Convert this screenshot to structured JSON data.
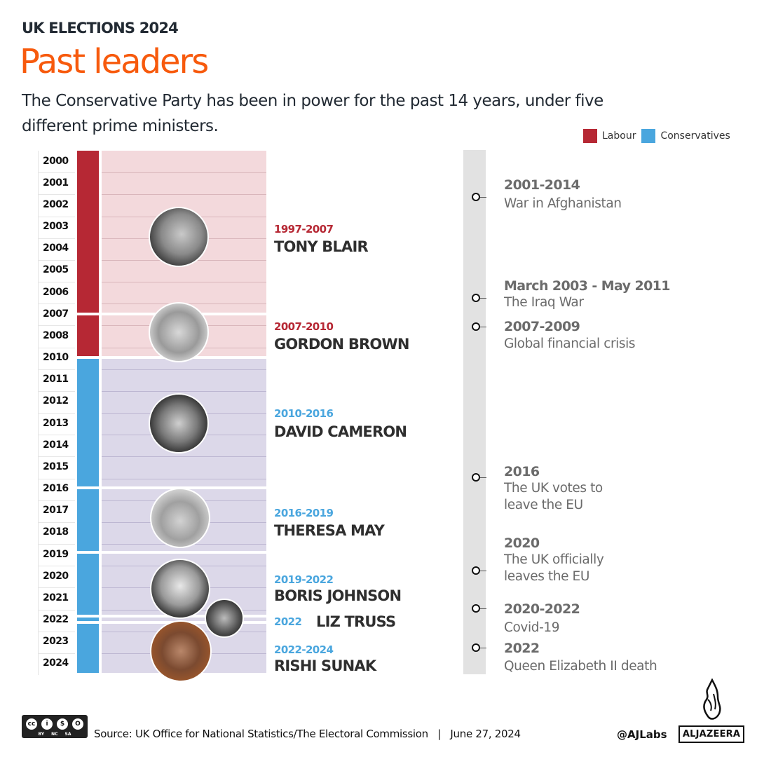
{
  "header": {
    "kicker": "UK ELECTIONS 2024",
    "title": "Past leaders",
    "subtitle": "The Conservative Party has been in power for the past 14 years, under five different prime ministers."
  },
  "legend": [
    {
      "label": "Labour",
      "color": "#b62834"
    },
    {
      "label": "Conservatives",
      "color": "#4aa6de"
    }
  ],
  "colors": {
    "labour": "#b62834",
    "conservative": "#4aa6de",
    "labour_band": "#f3d9dc",
    "conservative_band": "#dcd8e9",
    "title": "#f75a0d",
    "timeline_rail": "#e2e2e2"
  },
  "years": [
    "2000",
    "2001",
    "2002",
    "2003",
    "2004",
    "2005",
    "2006",
    "2007",
    "2008",
    "2010",
    "2011",
    "2012",
    "2013",
    "2014",
    "2015",
    "2016",
    "2017",
    "2018",
    "2019",
    "2020",
    "2021",
    "2022",
    "2023",
    "2024"
  ],
  "prime_ministers": [
    {
      "years": "1997-2007",
      "name": "TONY BLAIR",
      "party": "Labour"
    },
    {
      "years": "2007-2010",
      "name": "GORDON BROWN",
      "party": "Labour"
    },
    {
      "years": "2010-2016",
      "name": "DAVID CAMERON",
      "party": "Conservatives"
    },
    {
      "years": "2016-2019",
      "name": "THERESA MAY",
      "party": "Conservatives"
    },
    {
      "years": "2019-2022",
      "name": "BORIS JOHNSON",
      "party": "Conservatives"
    },
    {
      "years": "2022",
      "name": "LIZ TRUSS",
      "party": "Conservatives"
    },
    {
      "years": "2022-2024",
      "name": "RISHI SUNAK",
      "party": "Conservatives"
    }
  ],
  "events": [
    {
      "date": "2001-2014",
      "desc": "War in Afghanistan"
    },
    {
      "date": "March 2003 - May 2011",
      "desc": "The Iraq War"
    },
    {
      "date": "2007-2009",
      "desc": "Global financial crisis"
    },
    {
      "date": "2016",
      "desc_lines": [
        "The UK votes to",
        "leave the EU"
      ]
    },
    {
      "date": "2020",
      "desc_lines": [
        "The UK officially",
        "leaves the EU"
      ]
    },
    {
      "date": "2020-2022",
      "desc": "Covid-19"
    },
    {
      "date": "2022",
      "desc": "Queen Elizabeth II death"
    }
  ],
  "footer": {
    "license": {
      "badge": "cc",
      "labels": [
        "BY",
        "NC",
        "SA"
      ]
    },
    "source": "Source: UK Office for National Statistics/The Electoral Commission   |   June 27, 2024",
    "handle": "@AJLabs",
    "brand": "ALJAZEERA"
  }
}
